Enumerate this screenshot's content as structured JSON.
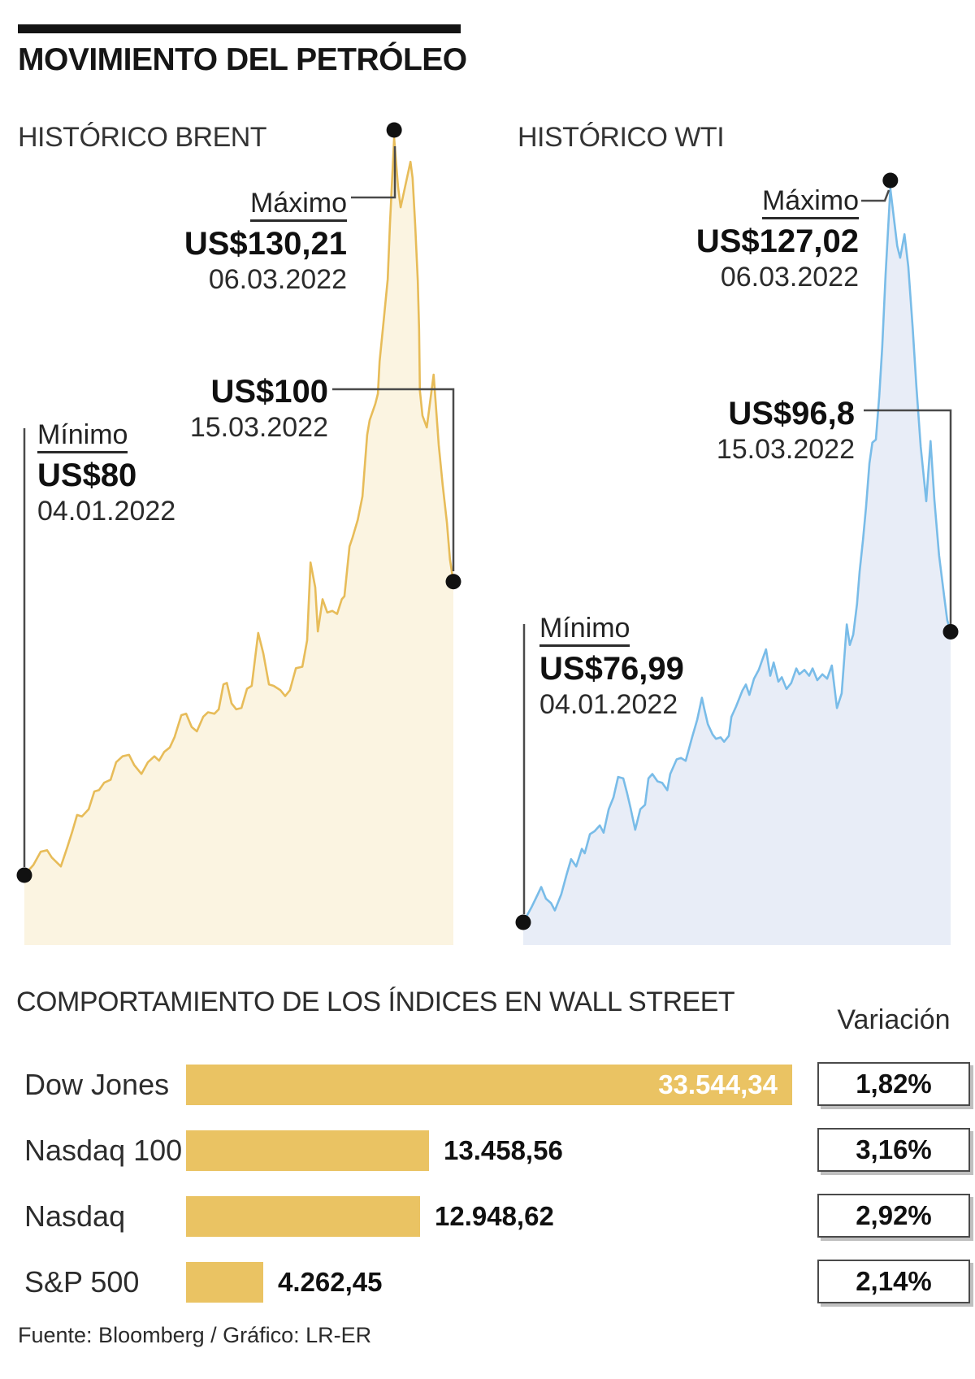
{
  "header": {
    "title": "MOVIMIENTO DEL PETRÓLEO"
  },
  "footer": {
    "source": "Fuente: Bloomberg / Gráfico: LR-ER"
  },
  "colors": {
    "brent_line": "#E7BC59",
    "brent_fill": "#FBF4E1",
    "wti_line": "#79BCE8",
    "wti_fill": "#E8EDF7",
    "bar": "#EAC363",
    "connector": "#4a4a4a",
    "dot": "#111111"
  },
  "chart_data": [
    {
      "type": "area",
      "id": "brent",
      "title": "HISTÓRICO BRENT",
      "unit": "US$ per barrel",
      "x_range": [
        "04.01.2022",
        "15.03.2022"
      ],
      "annotations": {
        "max": {
          "label": "Máximo",
          "value": "US$130,21",
          "date": "06.03.2022",
          "price": 130.21
        },
        "min": {
          "label": "Mínimo",
          "value": "US$80",
          "date": "04.01.2022",
          "price": 80
        },
        "last": {
          "value": "US$100",
          "date": "15.03.2022",
          "price": 100
        }
      },
      "series": [
        [
          0,
          80
        ],
        [
          0.021,
          80.7
        ],
        [
          0.038,
          81.6
        ],
        [
          0.053,
          81.7
        ],
        [
          0.064,
          81.2
        ],
        [
          0.085,
          80.6
        ],
        [
          0.1,
          81.9
        ],
        [
          0.112,
          83
        ],
        [
          0.123,
          84.1
        ],
        [
          0.134,
          84
        ],
        [
          0.15,
          84.5
        ],
        [
          0.163,
          85.7
        ],
        [
          0.174,
          85.8
        ],
        [
          0.186,
          86.3
        ],
        [
          0.201,
          86.5
        ],
        [
          0.214,
          87.7
        ],
        [
          0.229,
          88.1
        ],
        [
          0.244,
          88.2
        ],
        [
          0.256,
          87.5
        ],
        [
          0.273,
          86.9
        ],
        [
          0.288,
          87.7
        ],
        [
          0.303,
          88.1
        ],
        [
          0.314,
          87.8
        ],
        [
          0.326,
          88.4
        ],
        [
          0.339,
          88.7
        ],
        [
          0.35,
          89.4
        ],
        [
          0.366,
          90.9
        ],
        [
          0.377,
          91
        ],
        [
          0.39,
          90.1
        ],
        [
          0.402,
          89.8
        ],
        [
          0.417,
          90.8
        ],
        [
          0.428,
          91.1
        ],
        [
          0.443,
          91
        ],
        [
          0.453,
          91.3
        ],
        [
          0.464,
          93
        ],
        [
          0.472,
          93.1
        ],
        [
          0.483,
          91.7
        ],
        [
          0.494,
          91.3
        ],
        [
          0.506,
          91.4
        ],
        [
          0.519,
          92.7
        ],
        [
          0.53,
          92.9
        ],
        [
          0.545,
          96.5
        ],
        [
          0.557,
          95.1
        ],
        [
          0.57,
          93
        ],
        [
          0.581,
          92.9
        ],
        [
          0.597,
          92.6
        ],
        [
          0.608,
          92.2
        ],
        [
          0.619,
          92.6
        ],
        [
          0.633,
          94.1
        ],
        [
          0.648,
          94.2
        ],
        [
          0.659,
          96
        ],
        [
          0.667,
          101.3
        ],
        [
          0.678,
          99.6
        ],
        [
          0.684,
          96.6
        ],
        [
          0.695,
          98.8
        ],
        [
          0.706,
          97.9
        ],
        [
          0.718,
          98
        ],
        [
          0.729,
          97.8
        ],
        [
          0.74,
          98.8
        ],
        [
          0.746,
          99
        ],
        [
          0.758,
          102.4
        ],
        [
          0.765,
          103
        ],
        [
          0.777,
          104.2
        ],
        [
          0.788,
          105.8
        ],
        [
          0.799,
          110
        ],
        [
          0.805,
          111
        ],
        [
          0.818,
          112.1
        ],
        [
          0.824,
          112.8
        ],
        [
          0.828,
          115
        ],
        [
          0.837,
          117.6
        ],
        [
          0.847,
          120.6
        ],
        [
          0.852,
          124.3
        ],
        [
          0.862,
          130.21
        ],
        [
          0.871,
          126.9
        ],
        [
          0.877,
          125.5
        ],
        [
          0.9,
          128.6
        ],
        [
          0.905,
          127.5
        ],
        [
          0.911,
          124.3
        ],
        [
          0.917,
          120.5
        ],
        [
          0.92,
          117.2
        ],
        [
          0.922,
          113
        ],
        [
          0.928,
          111.3
        ],
        [
          0.938,
          110.5
        ],
        [
          0.954,
          114.1
        ],
        [
          0.966,
          109.3
        ],
        [
          0.975,
          106.6
        ],
        [
          0.985,
          104
        ],
        [
          0.992,
          101.5
        ],
        [
          1,
          100
        ]
      ]
    },
    {
      "type": "area",
      "id": "wti",
      "title": "HISTÓRICO WTI",
      "unit": "US$ per barrel",
      "x_range": [
        "04.01.2022",
        "15.03.2022"
      ],
      "annotations": {
        "max": {
          "label": "Máximo",
          "value": "US$127,02",
          "date": "06.03.2022",
          "price": 127.02
        },
        "min": {
          "label": "Mínimo",
          "value": "US$76,99",
          "date": "04.01.2022",
          "price": 76.99
        },
        "last": {
          "value": "US$96,8",
          "date": "15.03.2022",
          "price": 96.8
        }
      },
      "series": [
        [
          0,
          76.99
        ],
        [
          0.019,
          78
        ],
        [
          0.034,
          78.9
        ],
        [
          0.042,
          79.4
        ],
        [
          0.053,
          78.6
        ],
        [
          0.065,
          78.3
        ],
        [
          0.074,
          77.8
        ],
        [
          0.089,
          78.9
        ],
        [
          0.101,
          80.2
        ],
        [
          0.112,
          81.3
        ],
        [
          0.124,
          80.8
        ],
        [
          0.137,
          82
        ],
        [
          0.144,
          81.7
        ],
        [
          0.156,
          83
        ],
        [
          0.167,
          83.2
        ],
        [
          0.179,
          83.6
        ],
        [
          0.188,
          83.1
        ],
        [
          0.2,
          84.7
        ],
        [
          0.211,
          85.5
        ],
        [
          0.222,
          86.9
        ],
        [
          0.234,
          86.8
        ],
        [
          0.243,
          85.8
        ],
        [
          0.251,
          84.8
        ],
        [
          0.262,
          83.3
        ],
        [
          0.274,
          84.7
        ],
        [
          0.285,
          85
        ],
        [
          0.293,
          86.8
        ],
        [
          0.302,
          87.1
        ],
        [
          0.314,
          86.6
        ],
        [
          0.325,
          86.5
        ],
        [
          0.337,
          86
        ],
        [
          0.344,
          87.1
        ],
        [
          0.359,
          88.1
        ],
        [
          0.369,
          88.2
        ],
        [
          0.38,
          88
        ],
        [
          0.395,
          89.6
        ],
        [
          0.407,
          90.8
        ],
        [
          0.418,
          92.3
        ],
        [
          0.424,
          91.5
        ],
        [
          0.432,
          90.5
        ],
        [
          0.443,
          89.8
        ],
        [
          0.451,
          89.5
        ],
        [
          0.462,
          89.6
        ],
        [
          0.47,
          89.3
        ],
        [
          0.481,
          89.7
        ],
        [
          0.487,
          91
        ],
        [
          0.498,
          91.7
        ],
        [
          0.513,
          92.8
        ],
        [
          0.521,
          93.2
        ],
        [
          0.529,
          92.5
        ],
        [
          0.54,
          93.6
        ],
        [
          0.551,
          94.2
        ],
        [
          0.568,
          95.6
        ],
        [
          0.578,
          93.8
        ],
        [
          0.586,
          94.7
        ],
        [
          0.597,
          93.4
        ],
        [
          0.605,
          93.7
        ],
        [
          0.616,
          92.9
        ],
        [
          0.627,
          93.3
        ],
        [
          0.639,
          94.3
        ],
        [
          0.646,
          93.9
        ],
        [
          0.658,
          94.2
        ],
        [
          0.669,
          93.8
        ],
        [
          0.677,
          94.3
        ],
        [
          0.688,
          93.5
        ],
        [
          0.7,
          93.9
        ],
        [
          0.711,
          93.6
        ],
        [
          0.722,
          94.5
        ],
        [
          0.734,
          91.6
        ],
        [
          0.745,
          92.6
        ],
        [
          0.757,
          97.3
        ],
        [
          0.764,
          95.9
        ],
        [
          0.772,
          96.6
        ],
        [
          0.781,
          98.7
        ],
        [
          0.787,
          100.9
        ],
        [
          0.795,
          103.1
        ],
        [
          0.802,
          105.3
        ],
        [
          0.81,
          108.3
        ],
        [
          0.817,
          109.7
        ],
        [
          0.825,
          109.9
        ],
        [
          0.833,
          112.9
        ],
        [
          0.84,
          116.2
        ],
        [
          0.848,
          121.2
        ],
        [
          0.859,
          127.02
        ],
        [
          0.875,
          123.1
        ],
        [
          0.882,
          122.3
        ],
        [
          0.892,
          123.9
        ],
        [
          0.901,
          121.7
        ],
        [
          0.911,
          117.6
        ],
        [
          0.92,
          113.5
        ],
        [
          0.93,
          109.4
        ],
        [
          0.943,
          105.7
        ],
        [
          0.953,
          109.8
        ],
        [
          0.962,
          105.8
        ],
        [
          0.973,
          102
        ],
        [
          0.985,
          99.2
        ],
        [
          0.992,
          97.6
        ],
        [
          1,
          96.8
        ]
      ]
    },
    {
      "type": "bar",
      "id": "wall-street",
      "title": "COMPORTAMIENTO DE LOS ÍNDICES EN WALL STREET",
      "variation_label": "Variación",
      "categories": [
        "Dow Jones",
        "Nasdaq 100",
        "Nasdaq",
        "S&P 500"
      ],
      "values": [
        33544.34,
        13458.56,
        12948.62,
        4262.45
      ],
      "value_labels": [
        "33.544,34",
        "13.458,56",
        "12.948,62",
        "4.262,45"
      ],
      "variations": [
        "1,82%",
        "3,16%",
        "2,92%",
        "2,14%"
      ]
    }
  ]
}
